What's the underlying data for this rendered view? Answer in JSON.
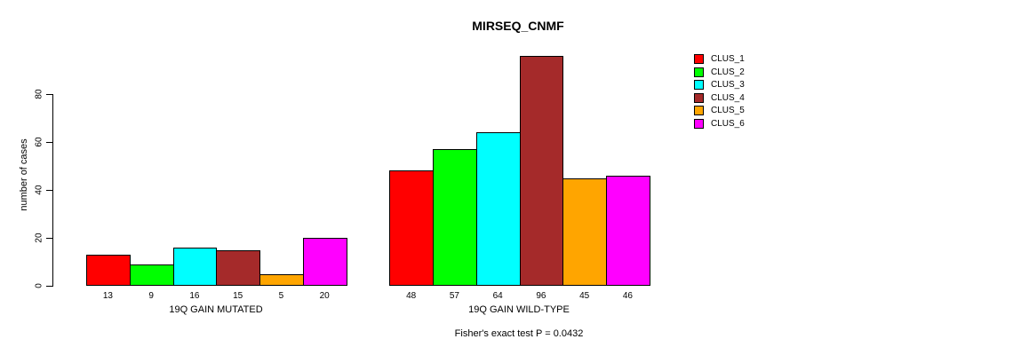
{
  "chart_data": {
    "type": "bar",
    "title": "MIRSEQ_CNMF",
    "ylabel": "number of cases",
    "yticks": [
      0,
      20,
      40,
      60,
      80
    ],
    "ylim": [
      0,
      96
    ],
    "grid": false,
    "legend_position": "top-right",
    "series": [
      {
        "name": "CLUS_1",
        "color": "#FF0000"
      },
      {
        "name": "CLUS_2",
        "color": "#00FF00"
      },
      {
        "name": "CLUS_3",
        "color": "#00FFFF"
      },
      {
        "name": "CLUS_4",
        "color": "#A52A2A"
      },
      {
        "name": "CLUS_5",
        "color": "#FFA500"
      },
      {
        "name": "CLUS_6",
        "color": "#FF00FF"
      }
    ],
    "groups": [
      {
        "label": "19Q GAIN MUTATED",
        "values": [
          13,
          9,
          16,
          15,
          5,
          20
        ]
      },
      {
        "label": "19Q GAIN WILD-TYPE",
        "values": [
          48,
          57,
          64,
          96,
          45,
          46
        ]
      }
    ],
    "annotation": "Fisher's exact test P = 0.0432"
  }
}
